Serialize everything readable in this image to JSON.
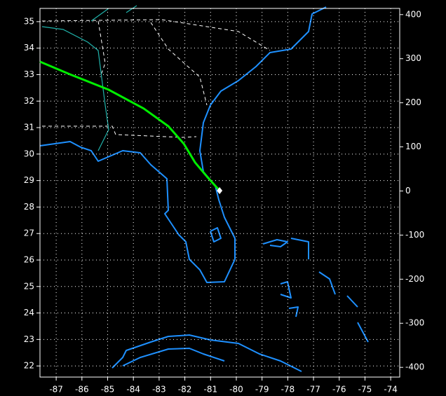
{
  "chart_data": {
    "type": "line",
    "x": [
      -87.63,
      -86.46,
      -84.96,
      -83.6,
      -82.64,
      -82.04,
      -81.6,
      -81.14,
      -80.65
    ],
    "values": [
      33.49,
      33.01,
      32.43,
      31.72,
      31.05,
      30.39,
      29.68,
      29.15,
      28.62
    ],
    "color": "#00ee00",
    "xlim": [
      -87.63,
      -73.65
    ],
    "xticks": [
      -87,
      -86,
      -85,
      -84,
      -83,
      -82,
      -81,
      -80,
      -79,
      -78,
      -77,
      -76,
      -75,
      -74
    ],
    "ylim": [
      21.58,
      35.5
    ],
    "yticks": [
      22,
      23,
      24,
      25,
      26,
      27,
      28,
      29,
      30,
      31,
      32,
      33,
      34,
      35
    ],
    "y2lim": [
      -422,
      414
    ],
    "y2ticks": [
      -400,
      -300,
      -200,
      -100,
      0,
      100,
      200,
      300,
      400
    ],
    "grid": true
  }
}
